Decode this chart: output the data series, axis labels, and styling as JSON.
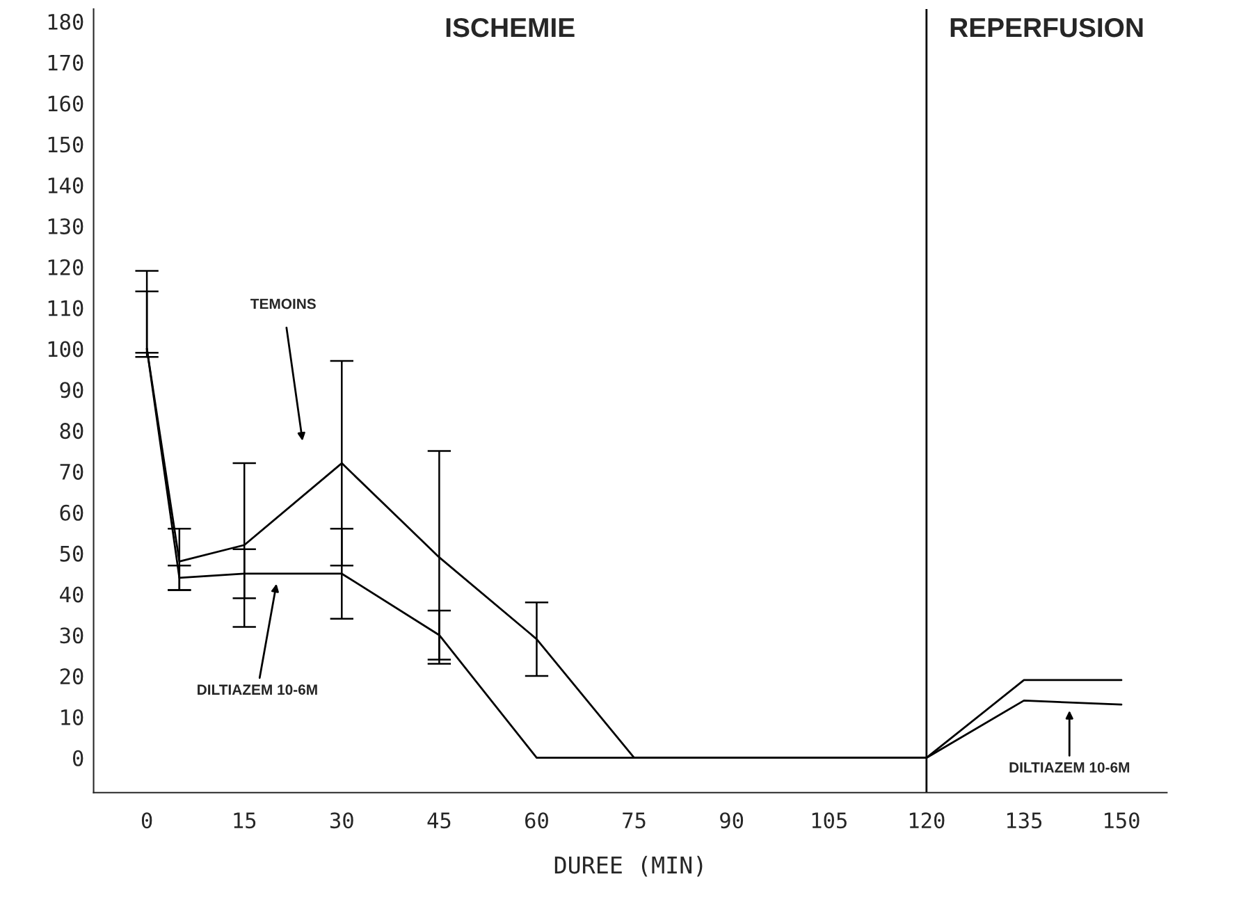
{
  "chart_data": {
    "type": "line",
    "xlabel": "DUREE (MIN)",
    "x": [
      0,
      5,
      15,
      30,
      45,
      60,
      75,
      90,
      105,
      120,
      135,
      150
    ],
    "series": [
      {
        "color": "#000000",
        "values": [
          100,
          48,
          52,
          72,
          49,
          29,
          0,
          0,
          0,
          0,
          19,
          19
        ],
        "errors": [
          [
            98,
            119
          ],
          [
            41,
            56
          ],
          [
            32,
            72
          ],
          [
            47,
            97
          ],
          [
            23,
            75
          ],
          [
            20,
            38
          ],
          null,
          null,
          null,
          null,
          null,
          null
        ]
      },
      {
        "color": "#000000",
        "values": [
          100,
          44,
          45,
          45,
          30,
          0,
          0,
          0,
          0,
          0,
          14,
          13
        ],
        "errors": [
          [
            99,
            114
          ],
          [
            41,
            47
          ],
          [
            39,
            51
          ],
          [
            34,
            56
          ],
          [
            24,
            36
          ],
          null,
          null,
          null,
          null,
          null,
          null,
          null
        ]
      }
    ],
    "xlim": [
      -8.2,
      157
    ],
    "ylim": [
      -8.5,
      183
    ],
    "xticks": [
      0,
      15,
      30,
      45,
      60,
      75,
      90,
      105,
      120,
      135,
      150
    ],
    "yticks": [
      0,
      10,
      20,
      30,
      40,
      50,
      60,
      70,
      80,
      90,
      100,
      110,
      120,
      130,
      140,
      150,
      160,
      170,
      180
    ],
    "ref_lines": [
      {
        "axis": "x",
        "value": 120
      }
    ],
    "annotations": [
      "ISCHEMIE",
      "REPERFUSION",
      "TEMOINS",
      "DILTIAZEM 10-6M",
      "DILTIAZEM 10-6M"
    ],
    "grid": false,
    "legend": false,
    "marker": "none",
    "line_style": "solid"
  }
}
